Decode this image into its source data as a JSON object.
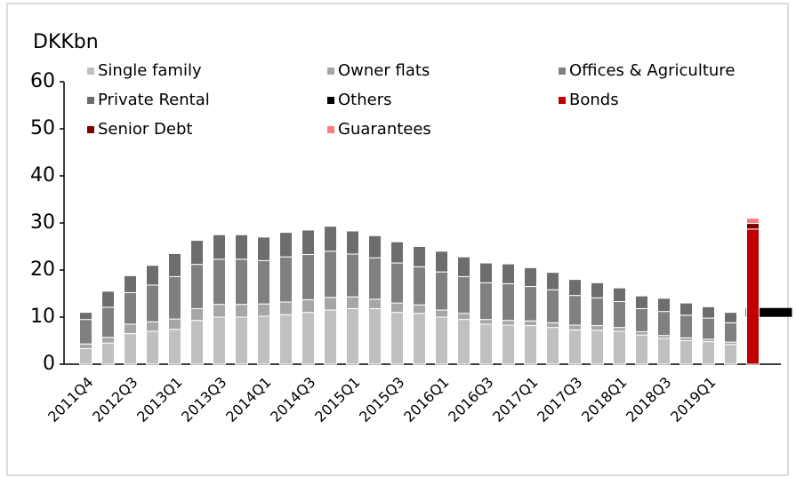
{
  "chart_data": {
    "type": "bar",
    "stacked": true,
    "y_unit_label": "DKKbn",
    "categories": [
      "2011Q4",
      null,
      "2012Q3",
      null,
      "2013Q1",
      null,
      "2013Q3",
      null,
      "2014Q1",
      null,
      "2014Q3",
      null,
      "2015Q1",
      null,
      "2015Q3",
      null,
      "2016Q1",
      null,
      "2016Q3",
      null,
      "2017Q1",
      null,
      "2017Q3",
      null,
      "2018Q1",
      null,
      "2018Q3",
      null,
      "2019Q1",
      null,
      null
    ],
    "series": [
      {
        "name": "Single family",
        "color": "#c0c0c0",
        "values": [
          3.3,
          4.5,
          6.5,
          7,
          7.4,
          9.3,
          10,
          10,
          10.2,
          10.5,
          11,
          11.5,
          11.8,
          11.8,
          11,
          10.8,
          10,
          9.5,
          8.5,
          8.3,
          8.2,
          7.8,
          7.3,
          7.2,
          7,
          6.2,
          5.5,
          5,
          4.8,
          4.2,
          null
        ]
      },
      {
        "name": "Owner flats",
        "color": "#a6a6a6",
        "values": [
          1,
          1.2,
          2,
          2,
          2.2,
          2.5,
          2.7,
          2.7,
          2.6,
          2.7,
          2.7,
          2.7,
          2.5,
          2,
          2,
          1.8,
          1.5,
          1.3,
          1,
          1,
          1,
          1,
          1,
          1,
          0.8,
          0.7,
          0.6,
          0.6,
          0.5,
          0.5,
          null
        ]
      },
      {
        "name": "Offices & Agriculture",
        "color": "#808080",
        "values": [
          5.2,
          6.4,
          6.7,
          7.8,
          9.0,
          9.4,
          9.6,
          9.6,
          9.2,
          9.6,
          9.6,
          9.8,
          9.1,
          8.8,
          8.5,
          8.1,
          8.1,
          7.8,
          7.8,
          7.8,
          7.3,
          7.0,
          6.3,
          5.9,
          5.5,
          4.9,
          5.1,
          4.8,
          4.5,
          4.1,
          null
        ]
      },
      {
        "name": "Private Rental",
        "color": "#6d6d6d",
        "values": [
          1.5,
          3.4,
          3.6,
          4.2,
          4.9,
          5.1,
          5.2,
          5.2,
          5.0,
          5.2,
          5.2,
          5.3,
          4.9,
          4.7,
          4.5,
          4.3,
          4.4,
          4.2,
          4.2,
          4.2,
          4.0,
          3.7,
          3.4,
          3.2,
          2.9,
          2.7,
          2.8,
          2.6,
          2.4,
          2.2,
          null
        ]
      },
      {
        "name": "Others",
        "color": "#000000",
        "style": "marker",
        "values": [
          null,
          null,
          null,
          null,
          null,
          null,
          null,
          null,
          null,
          null,
          null,
          null,
          null,
          null,
          null,
          null,
          null,
          null,
          null,
          null,
          null,
          null,
          null,
          null,
          null,
          null,
          null,
          null,
          null,
          null,
          11
        ]
      },
      {
        "name": "Bonds",
        "color": "#c00000",
        "values": [
          null,
          null,
          null,
          null,
          null,
          null,
          null,
          null,
          null,
          null,
          null,
          null,
          null,
          null,
          null,
          null,
          null,
          null,
          null,
          null,
          null,
          null,
          null,
          null,
          null,
          null,
          null,
          null,
          null,
          null,
          28.7
        ]
      },
      {
        "name": "Senior Debt",
        "color": "#7b0000",
        "values": [
          null,
          null,
          null,
          null,
          null,
          null,
          null,
          null,
          null,
          null,
          null,
          null,
          null,
          null,
          null,
          null,
          null,
          null,
          null,
          null,
          null,
          null,
          null,
          null,
          null,
          null,
          null,
          null,
          null,
          null,
          1.2
        ]
      },
      {
        "name": "Guarantees",
        "color": "#ff7c80",
        "values": [
          null,
          null,
          null,
          null,
          null,
          null,
          null,
          null,
          null,
          null,
          null,
          null,
          null,
          null,
          null,
          null,
          null,
          null,
          null,
          null,
          null,
          null,
          null,
          null,
          null,
          null,
          null,
          null,
          null,
          null,
          1.1
        ]
      }
    ],
    "ylim": [
      0,
      60
    ],
    "yticks": [
      0,
      10,
      20,
      30,
      40,
      50,
      60
    ],
    "grid": false
  }
}
